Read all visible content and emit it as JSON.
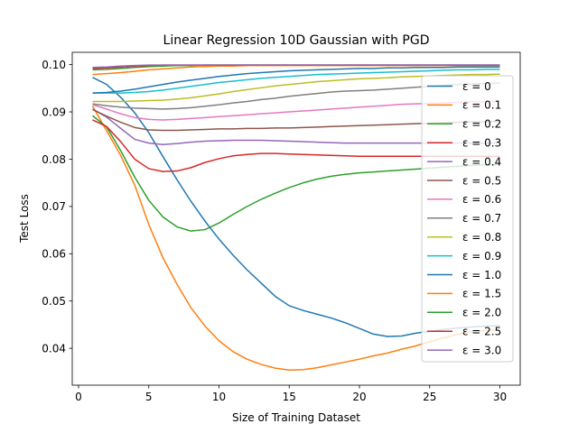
{
  "chart_data": {
    "type": "line",
    "title": "Linear Regression 10D Gaussian with PGD",
    "xlabel": "Size of Training Dataset",
    "ylabel": "Test Loss",
    "xlim": [
      -0.45,
      31.45
    ],
    "ylim": [
      0.0322,
      0.1026
    ],
    "xticks": [
      0,
      5,
      10,
      15,
      20,
      25,
      30
    ],
    "yticks": [
      0.04,
      0.05,
      0.06,
      0.07,
      0.08,
      0.09,
      0.1
    ],
    "ytick_labels": [
      "0.04",
      "0.05",
      "0.06",
      "0.07",
      "0.08",
      "0.09",
      "0.10"
    ],
    "grid": false,
    "legend_position": "right",
    "x": [
      1,
      2,
      3,
      4,
      5,
      6,
      7,
      8,
      9,
      10,
      11,
      12,
      13,
      14,
      15,
      16,
      17,
      18,
      19,
      20,
      21,
      22,
      23,
      24,
      25,
      26,
      27,
      28,
      29,
      30
    ],
    "series": [
      {
        "name": "ε = 0",
        "color": "#1f77b4",
        "values": [
          0.0973,
          0.0958,
          0.0931,
          0.0898,
          0.0856,
          0.0806,
          0.0757,
          0.0711,
          0.0669,
          0.0631,
          0.0597,
          0.0566,
          0.0538,
          0.051,
          0.049,
          0.048,
          0.0472,
          0.0464,
          0.0454,
          0.0442,
          0.043,
          0.0425,
          0.0426,
          0.0432,
          0.0436,
          0.044,
          0.0443,
          0.0445,
          0.0447,
          0.0448
        ]
      },
      {
        "name": "ε = 0.1",
        "color": "#ff7f0e",
        "values": [
          0.0912,
          0.086,
          0.0808,
          0.0745,
          0.0662,
          0.0592,
          0.0536,
          0.0486,
          0.0447,
          0.0416,
          0.0393,
          0.0377,
          0.0366,
          0.0358,
          0.0354,
          0.0355,
          0.0359,
          0.0365,
          0.0371,
          0.0377,
          0.0384,
          0.039,
          0.0398,
          0.0405,
          0.0414,
          0.0422,
          0.043,
          0.0435,
          0.0438,
          0.0439
        ]
      },
      {
        "name": "ε = 0.2",
        "color": "#2ca02c",
        "values": [
          0.0892,
          0.0868,
          0.0818,
          0.0762,
          0.0713,
          0.0678,
          0.0657,
          0.0648,
          0.0651,
          0.0665,
          0.0683,
          0.07,
          0.0715,
          0.0728,
          0.074,
          0.075,
          0.0758,
          0.0764,
          0.0768,
          0.0771,
          0.0773,
          0.0775,
          0.0777,
          0.0779,
          0.0781,
          0.0783,
          0.0785,
          0.0787,
          0.0788,
          0.0789
        ]
      },
      {
        "name": "ε = 0.3",
        "color": "#d62728",
        "values": [
          0.0883,
          0.0869,
          0.0837,
          0.08,
          0.078,
          0.0774,
          0.0775,
          0.0782,
          0.0793,
          0.0801,
          0.0807,
          0.081,
          0.0812,
          0.0812,
          0.0811,
          0.081,
          0.0809,
          0.0808,
          0.0807,
          0.0806,
          0.0806,
          0.0806,
          0.0806,
          0.0806,
          0.0806,
          0.0806,
          0.0806,
          0.0806,
          0.0806,
          0.0806
        ]
      },
      {
        "name": "ε = 0.4",
        "color": "#9467bd",
        "values": [
          0.0906,
          0.0889,
          0.0865,
          0.0842,
          0.0834,
          0.0831,
          0.0833,
          0.0836,
          0.0838,
          0.0839,
          0.084,
          0.084,
          0.084,
          0.0839,
          0.0838,
          0.0837,
          0.0836,
          0.0835,
          0.0834,
          0.0834,
          0.0834,
          0.0834,
          0.0834,
          0.0834,
          0.0834,
          0.0834,
          0.0834,
          0.0834,
          0.0834,
          0.0834
        ]
      },
      {
        "name": "ε = 0.5",
        "color": "#8c564b",
        "values": [
          0.0905,
          0.0891,
          0.0878,
          0.0867,
          0.0862,
          0.0861,
          0.0861,
          0.0862,
          0.0863,
          0.0864,
          0.0864,
          0.0865,
          0.0865,
          0.0866,
          0.0866,
          0.0867,
          0.0868,
          0.0869,
          0.087,
          0.0871,
          0.0872,
          0.0873,
          0.0874,
          0.0875,
          0.0876,
          0.0877,
          0.0878,
          0.0879,
          0.0879,
          0.088
        ]
      },
      {
        "name": "ε = 0.6",
        "color": "#e377c2",
        "values": [
          0.0915,
          0.0906,
          0.0896,
          0.0888,
          0.0884,
          0.0883,
          0.0884,
          0.0886,
          0.0888,
          0.089,
          0.0892,
          0.0894,
          0.0896,
          0.0898,
          0.09,
          0.0902,
          0.0904,
          0.0906,
          0.0908,
          0.091,
          0.0912,
          0.0914,
          0.0916,
          0.0917,
          0.0918,
          0.0919,
          0.092,
          0.0921,
          0.0922,
          0.0922
        ]
      },
      {
        "name": "ε = 0.7",
        "color": "#7f7f7f",
        "values": [
          0.0917,
          0.0913,
          0.091,
          0.0908,
          0.0907,
          0.0906,
          0.0907,
          0.0909,
          0.0912,
          0.0915,
          0.0919,
          0.0922,
          0.0926,
          0.0929,
          0.0933,
          0.0936,
          0.0939,
          0.0942,
          0.0944,
          0.0945,
          0.0946,
          0.0948,
          0.095,
          0.0952,
          0.0954,
          0.0956,
          0.0958,
          0.0959,
          0.096,
          0.0961
        ]
      },
      {
        "name": "ε = 0.8",
        "color": "#bcbd22",
        "values": [
          0.0922,
          0.0922,
          0.0922,
          0.0923,
          0.0924,
          0.0925,
          0.0927,
          0.093,
          0.0934,
          0.0938,
          0.0943,
          0.0947,
          0.0951,
          0.0955,
          0.0958,
          0.0961,
          0.0964,
          0.0966,
          0.0968,
          0.097,
          0.0971,
          0.0972,
          0.0974,
          0.0975,
          0.0976,
          0.0977,
          0.0978,
          0.0979,
          0.0979,
          0.098
        ]
      },
      {
        "name": "ε = 0.9",
        "color": "#17becf",
        "values": [
          0.094,
          0.094,
          0.094,
          0.0941,
          0.0943,
          0.0946,
          0.095,
          0.0954,
          0.0958,
          0.0962,
          0.0965,
          0.0968,
          0.0971,
          0.0973,
          0.0975,
          0.0977,
          0.0979,
          0.098,
          0.0981,
          0.0982,
          0.0983,
          0.0984,
          0.0985,
          0.0986,
          0.0987,
          0.0988,
          0.0989,
          0.0989,
          0.099,
          0.099
        ]
      },
      {
        "name": "ε = 1.0",
        "color": "#1f77b4",
        "values": [
          0.094,
          0.0941,
          0.0944,
          0.0948,
          0.0953,
          0.0958,
          0.0963,
          0.0967,
          0.0971,
          0.0975,
          0.0978,
          0.0981,
          0.0983,
          0.0985,
          0.0987,
          0.0988,
          0.0989,
          0.099,
          0.0991,
          0.0992,
          0.0992,
          0.0993,
          0.0993,
          0.0994,
          0.0994,
          0.0994,
          0.0995,
          0.0995,
          0.0995,
          0.0995
        ]
      },
      {
        "name": "ε = 1.5",
        "color": "#ff7f0e",
        "values": [
          0.0979,
          0.0981,
          0.0983,
          0.0986,
          0.0989,
          0.0991,
          0.0993,
          0.0995,
          0.0996,
          0.0997,
          0.0997,
          0.0998,
          0.0998,
          0.0998,
          0.0998,
          0.0998,
          0.0998,
          0.0998,
          0.0998,
          0.0998,
          0.0998,
          0.0998,
          0.0998,
          0.0998,
          0.0998,
          0.0998,
          0.0998,
          0.0998,
          0.0998,
          0.0998
        ]
      },
      {
        "name": "ε = 2.0",
        "color": "#2ca02c",
        "values": [
          0.0989,
          0.099,
          0.0992,
          0.0994,
          0.0996,
          0.0997,
          0.0998,
          0.0998,
          0.0999,
          0.0999,
          0.0999,
          0.0999,
          0.0999,
          0.0999,
          0.0999,
          0.0999,
          0.0999,
          0.0999,
          0.0999,
          0.0999,
          0.0999,
          0.0999,
          0.0999,
          0.0999,
          0.0999,
          0.0999,
          0.0999,
          0.0999,
          0.0999,
          0.0999
        ]
      },
      {
        "name": "ε = 2.5",
        "color": "#d62728",
        "values": [
          0.0992,
          0.0993,
          0.0995,
          0.0997,
          0.0998,
          0.0999,
          0.0999,
          0.0999,
          0.0999,
          0.0999,
          0.0999,
          0.0999,
          0.0999,
          0.0999,
          0.0999,
          0.0999,
          0.0999,
          0.0999,
          0.0999,
          0.0999,
          0.0999,
          0.0999,
          0.0999,
          0.0999,
          0.0999,
          0.0999,
          0.0999,
          0.0999,
          0.0999,
          0.0999
        ]
      },
      {
        "name": "ε = 3.0",
        "color": "#9467bd",
        "values": [
          0.0994,
          0.0995,
          0.0997,
          0.0998,
          0.0999,
          0.0999,
          0.0999,
          0.0999,
          0.0999,
          0.0999,
          0.0999,
          0.0999,
          0.0999,
          0.0999,
          0.0999,
          0.0999,
          0.0999,
          0.0999,
          0.0999,
          0.0999,
          0.0999,
          0.0999,
          0.0999,
          0.0999,
          0.0999,
          0.0999,
          0.0999,
          0.0999,
          0.0999,
          0.0999
        ]
      }
    ]
  }
}
